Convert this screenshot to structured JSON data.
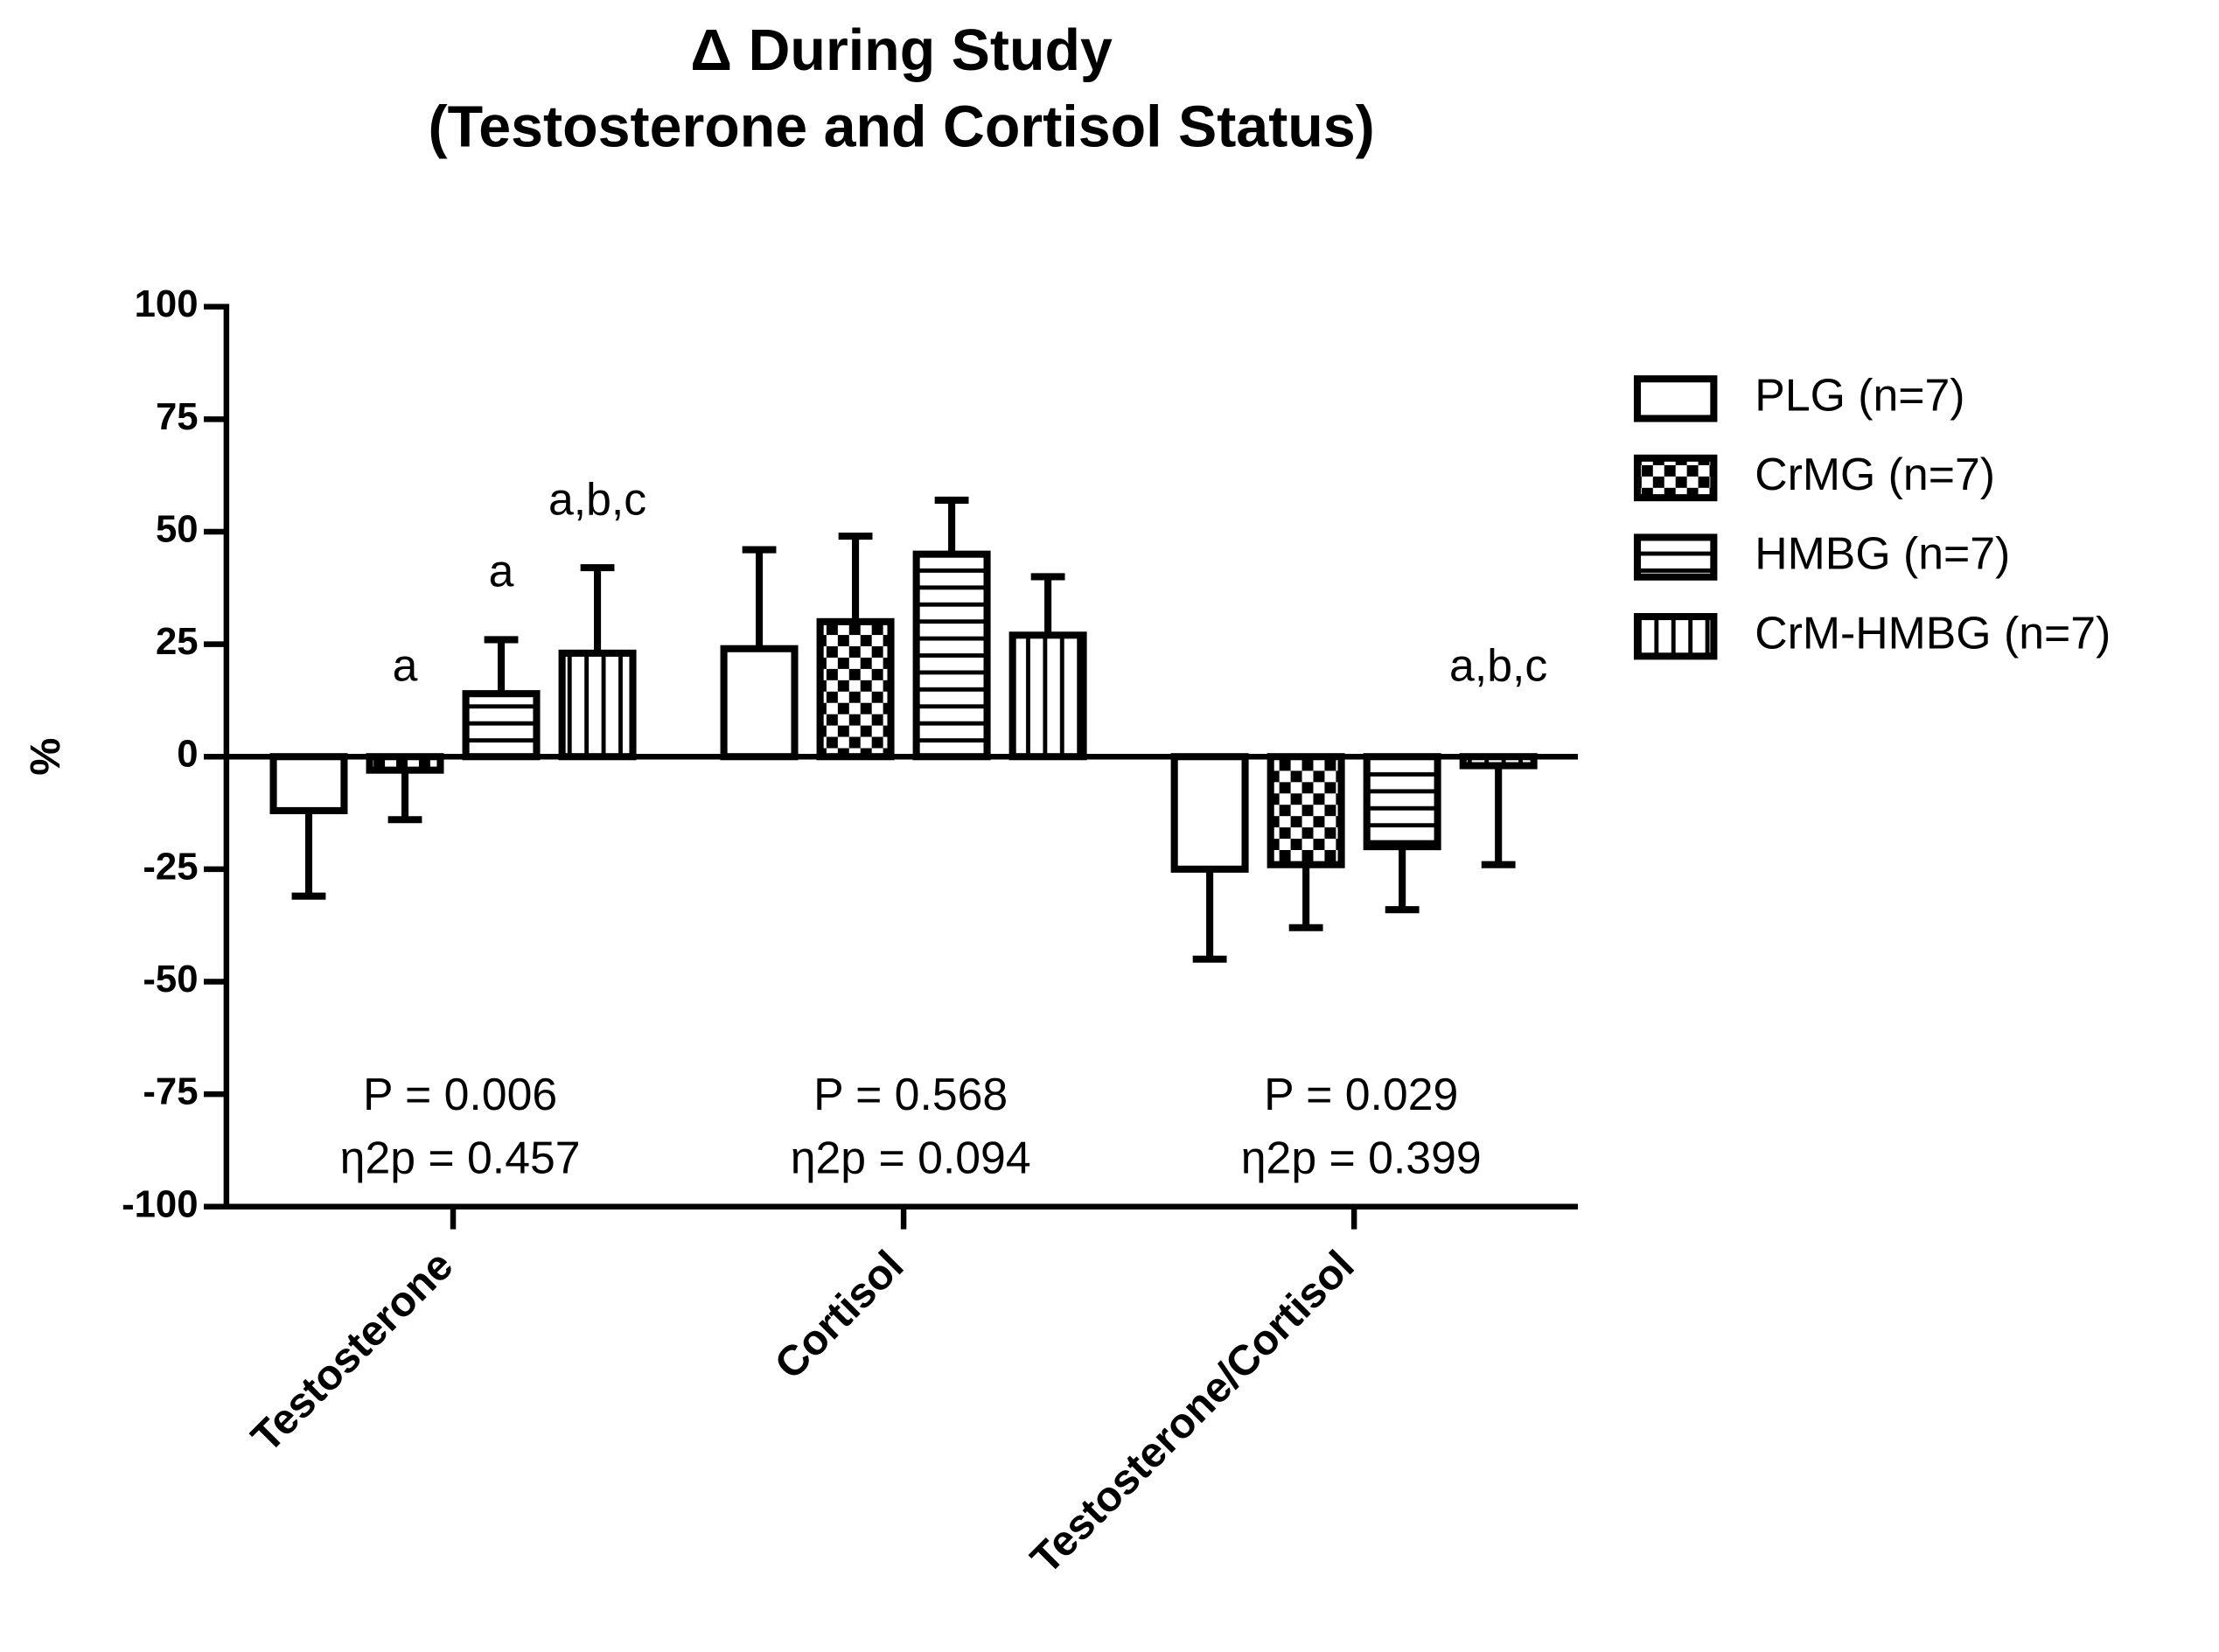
{
  "chart_data": {
    "type": "bar",
    "title": "Δ During Study",
    "subtitle": "(Testosterone and Cortisol Status)",
    "ylabel": "%",
    "categories": [
      "Testosterone",
      "Cortisol",
      "Testosterone/Cortisol"
    ],
    "ylim": [
      -100,
      100
    ],
    "yticks": [
      -100,
      -75,
      -50,
      -25,
      0,
      25,
      50,
      75,
      100
    ],
    "p_values": [
      "P = 0.006",
      "P = 0.568",
      "P = 0.029"
    ],
    "effect_sizes": [
      "η2p = 0.457",
      "η2p = 0.094",
      "η2p = 0.399"
    ],
    "series": [
      {
        "name": "PLG (n=7)",
        "color": "#000000",
        "pattern": "none",
        "values": [
          -12,
          24,
          -25
        ],
        "errors": [
          19,
          22,
          20
        ],
        "annotations": [
          null,
          null,
          null
        ]
      },
      {
        "name": "CrMG (n=7)",
        "color": "#000000",
        "pattern": "checker",
        "values": [
          -3,
          30,
          -24
        ],
        "errors": [
          11,
          19,
          14
        ],
        "annotations": [
          "a",
          null,
          null
        ]
      },
      {
        "name": "HMBG (n=7)",
        "color": "#000000",
        "pattern": "horizontal",
        "values": [
          14,
          45,
          -20
        ],
        "errors": [
          12,
          12,
          14
        ],
        "annotations": [
          "a",
          null,
          null
        ]
      },
      {
        "name": "CrM-HMBG (n=7)",
        "color": "#000000",
        "pattern": "vertical",
        "values": [
          23,
          27,
          -2
        ],
        "errors": [
          19,
          13,
          22
        ],
        "annotations": [
          "a,b,c",
          null,
          "a,b,c"
        ]
      }
    ]
  }
}
